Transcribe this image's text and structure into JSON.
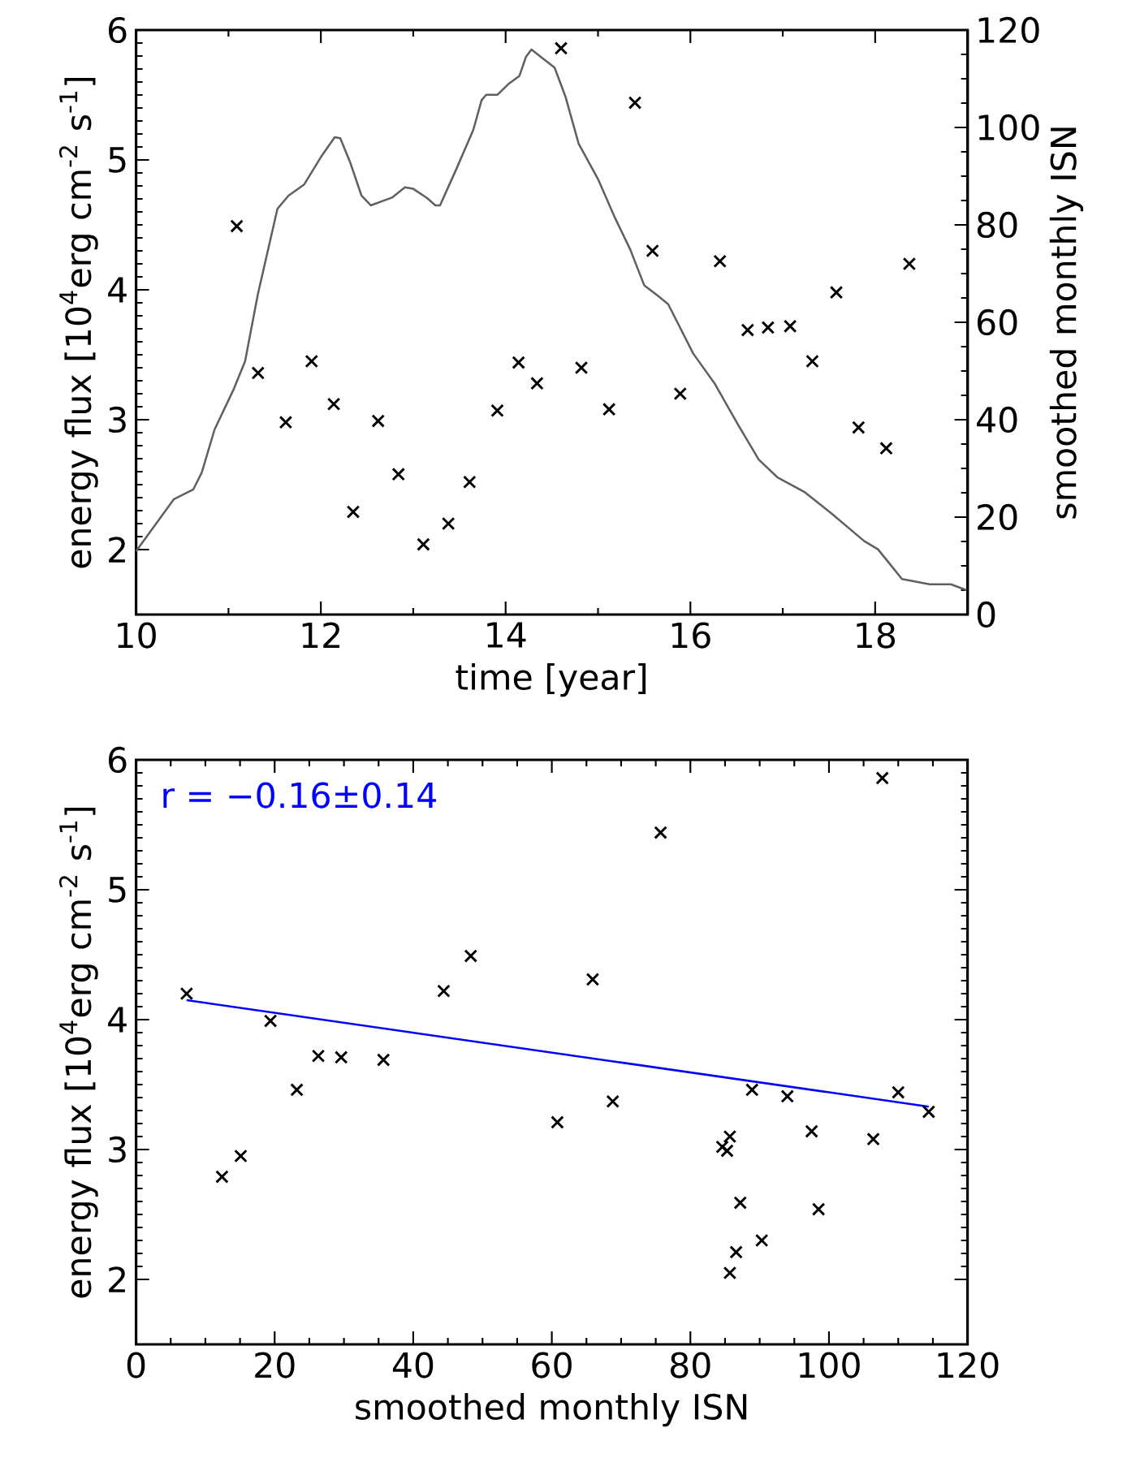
{
  "chart_data": [
    {
      "type": "scatter",
      "xlabel": "time [year]",
      "ylabel": "energy flux [10$^{4}$erg cm$^{-2}$ s$^{-1}$]",
      "y2label": "smoothed monthly ISN",
      "xlim": [
        10,
        19
      ],
      "xticks": [
        10,
        12,
        14,
        16,
        18
      ],
      "ylim": [
        1.5,
        6
      ],
      "yticks": [
        2,
        3,
        4,
        5,
        6
      ],
      "y2lim": [
        0,
        120
      ],
      "y2ticks": [
        0,
        20,
        40,
        60,
        80,
        100,
        120
      ],
      "marker": "cross",
      "series": [
        {
          "color": "#000000",
          "x": [
            11.09,
            11.32,
            11.62,
            11.9,
            12.14,
            12.35,
            12.62,
            12.84,
            13.11,
            13.38,
            13.61,
            13.91,
            14.14,
            14.34,
            14.6,
            14.82,
            15.12,
            15.4,
            15.59,
            15.89,
            16.32,
            16.62,
            16.84,
            17.08,
            17.32,
            17.58,
            17.82,
            18.12,
            18.37
          ],
          "values": [
            4.49,
            3.36,
            2.98,
            3.45,
            3.12,
            2.29,
            2.99,
            2.58,
            2.04,
            2.2,
            2.52,
            3.07,
            3.44,
            3.28,
            5.86,
            3.4,
            3.08,
            5.44,
            4.3,
            3.2,
            4.22,
            3.69,
            3.71,
            3.72,
            3.45,
            3.98,
            2.94,
            2.78,
            4.2
          ]
        },
        {
          "type": "line",
          "axis": "y2",
          "marker": "none",
          "color": "#606060",
          "x": [
            10.0,
            10.41,
            10.62,
            10.71,
            10.85,
            11.06,
            11.18,
            11.32,
            11.53,
            11.65,
            11.82,
            12.0,
            12.15,
            12.21,
            12.32,
            12.44,
            12.54,
            12.77,
            12.91,
            13.0,
            13.15,
            13.24,
            13.29,
            13.47,
            13.65,
            13.74,
            13.79,
            13.91,
            14.03,
            14.15,
            14.22,
            14.28,
            14.38,
            14.53,
            14.65,
            14.79,
            15.0,
            15.18,
            15.35,
            15.5,
            15.65,
            15.76,
            16.03,
            16.26,
            16.53,
            16.74,
            16.94,
            17.24,
            17.53,
            17.88,
            18.03,
            18.15,
            18.29,
            18.59,
            18.82,
            18.99
          ],
          "values": [
            13,
            23.7,
            25.7,
            29.1,
            38.0,
            46.4,
            52.0,
            65.9,
            83.3,
            86.0,
            88.3,
            93.9,
            98.0,
            97.8,
            92.7,
            86.0,
            84.0,
            85.6,
            87.7,
            87.4,
            85.5,
            84.0,
            84.0,
            91.6,
            99.5,
            105.6,
            106.7,
            106.7,
            108.9,
            110.6,
            114.5,
            116.0,
            114.5,
            112.3,
            106.2,
            96.7,
            89.4,
            81.6,
            74.9,
            67.6,
            65.4,
            63.7,
            53.6,
            47.5,
            38.5,
            31.8,
            28.2,
            25.1,
            20.7,
            15.1,
            13.4,
            10.6,
            7.3,
            6.2,
            6.2,
            5.0
          ]
        }
      ]
    },
    {
      "type": "scatter",
      "xlabel": "smoothed monthly ISN",
      "ylabel": "energy flux [10$^{4}$erg cm$^{-2}$ s$^{-1}$]",
      "xlim": [
        0,
        120
      ],
      "xticks": [
        0,
        20,
        40,
        60,
        80,
        100,
        120
      ],
      "ylim": [
        1.5,
        6
      ],
      "yticks": [
        2,
        3,
        4,
        5,
        6
      ],
      "marker": "cross",
      "annotations": [
        "r = −0.16±0.14"
      ],
      "series": [
        {
          "color": "#000000",
          "x": [
            7.3,
            12.4,
            15.1,
            19.4,
            23.2,
            26.3,
            29.6,
            35.7,
            44.4,
            48.3,
            60.8,
            65.9,
            68.8,
            75.7,
            84.6,
            85.3,
            85.7,
            85.7,
            86.6,
            87.2,
            88.9,
            90.3,
            94.0,
            97.5,
            98.5,
            106.4,
            107.7,
            110.0,
            114.4
          ],
          "values": [
            4.2,
            2.79,
            2.95,
            3.99,
            3.46,
            3.72,
            3.71,
            3.69,
            4.22,
            4.49,
            3.21,
            4.31,
            3.37,
            5.44,
            3.02,
            2.99,
            3.1,
            2.05,
            2.21,
            2.59,
            3.46,
            2.3,
            3.41,
            3.14,
            2.54,
            3.08,
            5.86,
            3.44,
            3.29
          ]
        },
        {
          "type": "line",
          "marker": "none",
          "color": "#0000ff",
          "x": [
            7.3,
            114.4
          ],
          "values": [
            4.15,
            3.33
          ]
        }
      ]
    }
  ]
}
